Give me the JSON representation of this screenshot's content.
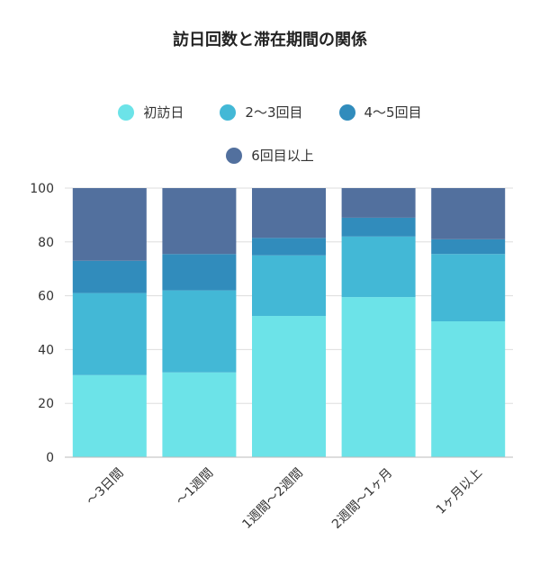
{
  "chart_data": {
    "type": "bar",
    "stacked": true,
    "title": "訪日回数と滞在期間の関係",
    "xlabel": "",
    "ylabel": "",
    "ylim": [
      0,
      100
    ],
    "yticks": [
      0,
      20,
      40,
      60,
      80,
      100
    ],
    "grid": true,
    "legend_position": "top",
    "categories": [
      "〜3日間",
      "〜1週間",
      "1週間〜2週間",
      "2週間〜1ヶ月",
      "1ヶ月以上"
    ],
    "series": [
      {
        "name": "初訪日",
        "color": "#6ce3e8",
        "values": [
          30.5,
          31.5,
          52.5,
          59.5,
          50.5
        ]
      },
      {
        "name": "2〜3回目",
        "color": "#43b8d6",
        "values": [
          30.5,
          30.5,
          22.5,
          22.5,
          25.0
        ]
      },
      {
        "name": "4〜5回目",
        "color": "#318cbc",
        "values": [
          12.0,
          13.5,
          6.5,
          7.0,
          5.5
        ]
      },
      {
        "name": "6回目以上",
        "color": "#52709e",
        "values": [
          27.0,
          24.5,
          18.5,
          11.0,
          19.0
        ]
      }
    ]
  }
}
